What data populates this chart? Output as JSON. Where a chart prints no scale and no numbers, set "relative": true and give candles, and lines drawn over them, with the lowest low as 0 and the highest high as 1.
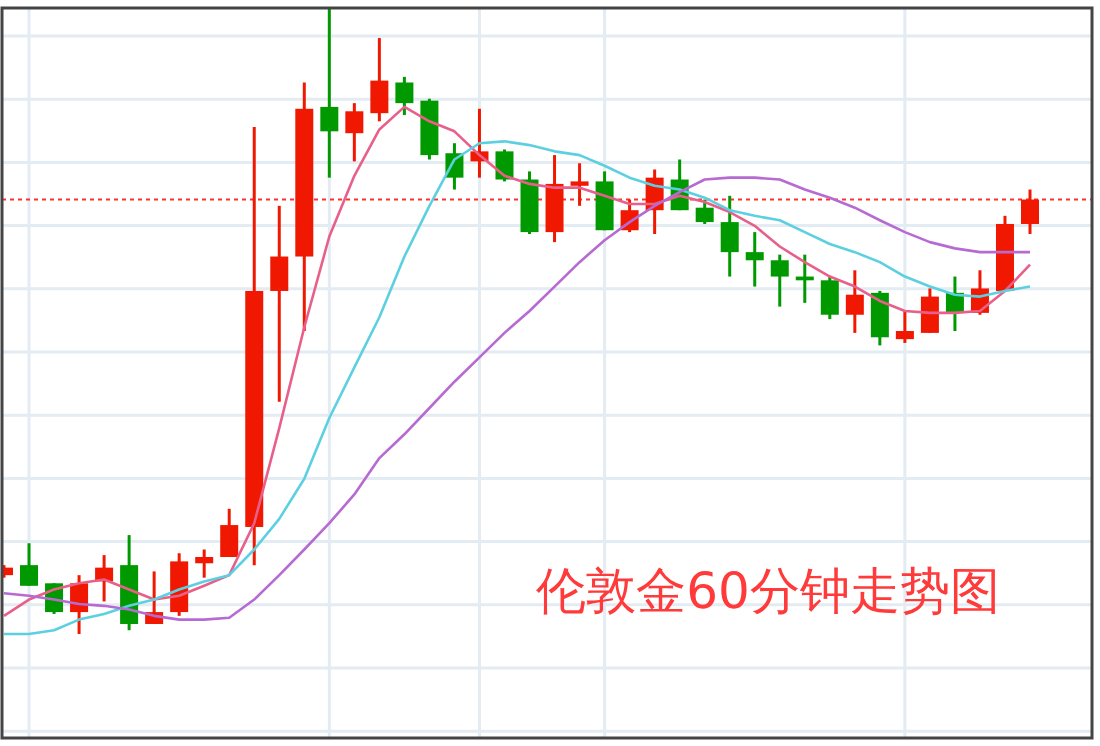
{
  "chart_data": {
    "type": "candlestick",
    "title": "伦敦金60分钟走势图",
    "relative": true,
    "grid": true,
    "categories": [
      null,
      null,
      null,
      null,
      null,
      null,
      null,
      null,
      null,
      null,
      null,
      null,
      null,
      null,
      null,
      null,
      null,
      null,
      null,
      null,
      null,
      null,
      null,
      null,
      null,
      null,
      null,
      null,
      null,
      null,
      null,
      null,
      null,
      null,
      null,
      null,
      null,
      null,
      null,
      null,
      null,
      null
    ],
    "ohlc": [
      [
        0.094,
        0.11,
        0.09,
        0.106
      ],
      [
        0.11,
        0.145,
        0.077,
        0.077
      ],
      [
        0.081,
        0.081,
        0.032,
        0.035
      ],
      [
        0.035,
        0.094,
        0,
        0.081
      ],
      [
        0.084,
        0.126,
        0.052,
        0.106
      ],
      [
        0.11,
        0.158,
        0.006,
        0.016
      ],
      [
        0.016,
        0.1,
        0.016,
        0.035
      ],
      [
        0.035,
        0.129,
        0.029,
        0.116
      ],
      [
        0.113,
        0.135,
        0.09,
        0.123
      ],
      [
        0.123,
        0.2,
        0.123,
        0.174
      ],
      [
        0.171,
        0.81,
        0.11,
        0.548
      ],
      [
        0.548,
        0.684,
        0.371,
        0.603
      ],
      [
        0.603,
        0.881,
        0.484,
        0.839
      ],
      [
        0.842,
        1,
        0.729,
        0.803
      ],
      [
        0.8,
        0.848,
        0.755,
        0.835
      ],
      [
        0.832,
        0.952,
        0.819,
        0.884
      ],
      [
        0.881,
        0.89,
        0.829,
        0.848
      ],
      [
        0.852,
        0.855,
        0.758,
        0.765
      ],
      [
        0.768,
        0.784,
        0.71,
        0.729
      ],
      [
        0.755,
        0.839,
        0.729,
        0.771
      ],
      [
        0.771,
        0.774,
        0.723,
        0.726
      ],
      [
        0.726,
        0.739,
        0.639,
        0.642
      ],
      [
        0.642,
        0.765,
        0.626,
        0.719
      ],
      [
        0.716,
        0.752,
        0.684,
        0.723
      ],
      [
        0.723,
        0.739,
        0.645,
        0.645
      ],
      [
        0.645,
        0.694,
        0.642,
        0.677
      ],
      [
        0.677,
        0.742,
        0.639,
        0.729
      ],
      [
        0.726,
        0.758,
        0.677,
        0.677
      ],
      [
        0.681,
        0.694,
        0.655,
        0.658
      ],
      [
        0.658,
        0.7,
        0.571,
        0.61
      ],
      [
        0.61,
        0.642,
        0.555,
        0.597
      ],
      [
        0.597,
        0.606,
        0.523,
        0.571
      ],
      [
        0.571,
        0.606,
        0.529,
        0.565
      ],
      [
        0.565,
        0.571,
        0.503,
        0.51
      ],
      [
        0.51,
        0.581,
        0.481,
        0.542
      ],
      [
        0.545,
        0.548,
        0.461,
        0.474
      ],
      [
        0.471,
        0.516,
        0.465,
        0.484
      ],
      [
        0.481,
        0.552,
        0.481,
        0.539
      ],
      [
        0.545,
        0.571,
        0.484,
        0.513
      ],
      [
        0.513,
        0.581,
        0.51,
        0.552
      ],
      [
        0.548,
        0.668,
        0.548,
        0.655
      ],
      [
        0.655,
        0.71,
        0.639,
        0.694
      ]
    ],
    "colors": [
      "#f01800",
      "#009a00",
      "#009a00",
      "#f01800",
      "#f01800",
      "#009a00",
      "#f01800",
      "#f01800",
      "#f01800",
      "#f01800",
      "#f01800",
      "#f01800",
      "#f01800",
      "#009a00",
      "#f01800",
      "#f01800",
      "#009a00",
      "#009a00",
      "#009a00",
      "#f01800",
      "#009a00",
      "#009a00",
      "#f01800",
      "#f01800",
      "#009a00",
      "#f01800",
      "#f01800",
      "#009a00",
      "#009a00",
      "#009a00",
      "#009a00",
      "#009a00",
      "#009a00",
      "#009a00",
      "#f01800",
      "#009a00",
      "#f01800",
      "#f01800",
      "#009a00",
      "#f01800",
      "#f01800",
      "#f01800"
    ],
    "series": [
      {
        "type": "line",
        "color": "#e8608a",
        "values": [
          0.029,
          0.055,
          0.071,
          0.081,
          0.087,
          0.071,
          0.055,
          0.061,
          0.077,
          0.094,
          0.177,
          0.329,
          0.49,
          0.635,
          0.732,
          0.806,
          0.842,
          0.819,
          0.803,
          0.765,
          0.732,
          0.719,
          0.713,
          0.713,
          0.7,
          0.687,
          0.687,
          0.7,
          0.69,
          0.674,
          0.652,
          0.619,
          0.594,
          0.571,
          0.555,
          0.532,
          0.516,
          0.513,
          0.513,
          0.516,
          0.548,
          0.59
        ]
      },
      {
        "type": "line",
        "color": "#5cd0e0",
        "values": [
          0,
          0,
          0.006,
          0.023,
          0.032,
          0.045,
          0.055,
          0.071,
          0.084,
          0.094,
          0.135,
          0.184,
          0.248,
          0.345,
          0.426,
          0.506,
          0.603,
          0.684,
          0.758,
          0.784,
          0.787,
          0.781,
          0.771,
          0.765,
          0.748,
          0.729,
          0.716,
          0.71,
          0.697,
          0.677,
          0.668,
          0.661,
          0.642,
          0.623,
          0.61,
          0.594,
          0.571,
          0.555,
          0.542,
          0.539,
          0.548,
          0.555
        ]
      },
      {
        "type": "line",
        "color": "#b66ad2",
        "values": [
          0.065,
          0.061,
          0.055,
          0.048,
          0.045,
          0.039,
          0.029,
          0.023,
          0.023,
          0.026,
          0.055,
          0.094,
          0.135,
          0.177,
          0.223,
          0.281,
          0.319,
          0.361,
          0.403,
          0.442,
          0.481,
          0.516,
          0.555,
          0.594,
          0.629,
          0.658,
          0.684,
          0.706,
          0.726,
          0.729,
          0.729,
          0.726,
          0.71,
          0.697,
          0.681,
          0.661,
          0.642,
          0.626,
          0.616,
          0.61,
          0.61,
          0.61
        ]
      }
    ],
    "ref_lines": [
      {
        "axis": "y",
        "value": 0.694,
        "color": "#ff3030",
        "line_style": "dotted"
      }
    ]
  }
}
